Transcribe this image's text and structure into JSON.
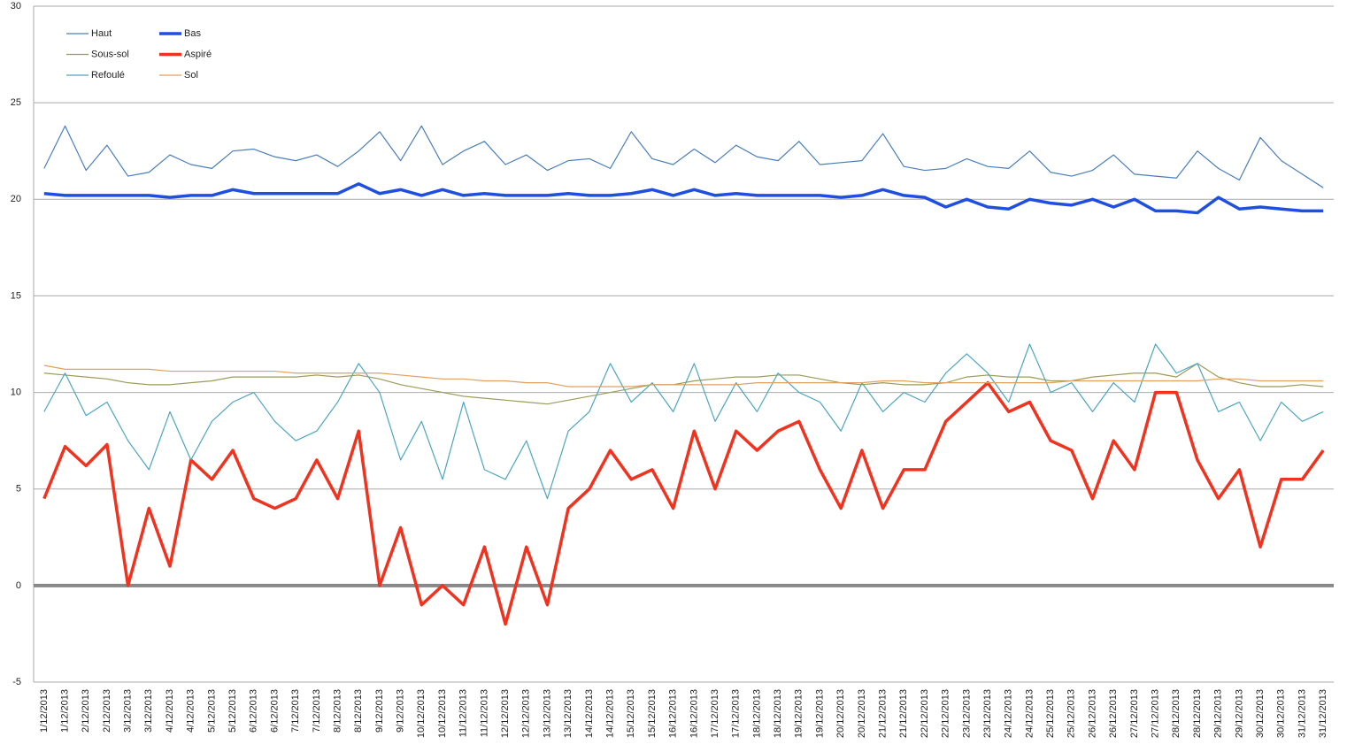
{
  "chart_data": {
    "type": "line",
    "categories": [
      "1/12/2013",
      "1/12/2013",
      "2/12/2013",
      "2/12/2013",
      "3/12/2013",
      "3/12/2013",
      "4/12/2013",
      "4/12/2013",
      "5/12/2013",
      "5/12/2013",
      "6/12/2013",
      "6/12/2013",
      "7/12/2013",
      "7/12/2013",
      "8/12/2013",
      "8/12/2013",
      "9/12/2013",
      "9/12/2013",
      "10/12/2013",
      "10/12/2013",
      "11/12/2013",
      "11/12/2013",
      "12/12/2013",
      "12/12/2013",
      "13/12/2013",
      "13/12/2013",
      "14/12/2013",
      "14/12/2013",
      "15/12/2013",
      "15/12/2013",
      "16/12/2013",
      "16/12/2013",
      "17/12/2013",
      "17/12/2013",
      "18/12/2013",
      "18/12/2013",
      "19/12/2013",
      "19/12/2013",
      "20/12/2013",
      "20/12/2013",
      "21/12/2013",
      "21/12/2013",
      "22/12/2013",
      "22/12/2013",
      "23/12/2013",
      "23/12/2013",
      "24/12/2013",
      "24/12/2013",
      "25/12/2013",
      "25/12/2013",
      "26/12/2013",
      "26/12/2013",
      "27/12/2013",
      "27/12/2013",
      "28/12/2013",
      "28/12/2013",
      "29/12/2013",
      "29/12/2013",
      "30/12/2013",
      "30/12/2013",
      "31/12/2013",
      "31/12/2013"
    ],
    "series": [
      {
        "name": "Haut",
        "color": "#4a7ebb",
        "linewidth": 1.2,
        "values": [
          21.6,
          23.8,
          21.5,
          22.8,
          21.2,
          21.4,
          22.3,
          21.8,
          21.6,
          22.5,
          22.6,
          22.2,
          22.0,
          22.3,
          21.7,
          22.5,
          23.5,
          22.0,
          23.8,
          21.8,
          22.5,
          23.0,
          21.8,
          22.3,
          21.5,
          22.0,
          22.1,
          21.6,
          23.5,
          22.1,
          21.8,
          22.6,
          21.9,
          22.8,
          22.2,
          22.0,
          23.0,
          21.8,
          21.9,
          22.0,
          23.4,
          21.7,
          21.5,
          21.6,
          22.1,
          21.7,
          21.6,
          22.5,
          21.4,
          21.2,
          21.5,
          22.3,
          21.3,
          21.2,
          21.1,
          22.5,
          21.6,
          21.0,
          23.2,
          22.0,
          21.3,
          20.6
        ]
      },
      {
        "name": "Bas",
        "color": "#1f4fe0",
        "linewidth": 3.5,
        "values": [
          20.3,
          20.2,
          20.2,
          20.2,
          20.2,
          20.2,
          20.1,
          20.2,
          20.2,
          20.5,
          20.3,
          20.3,
          20.3,
          20.3,
          20.3,
          20.8,
          20.3,
          20.5,
          20.2,
          20.5,
          20.2,
          20.3,
          20.2,
          20.2,
          20.2,
          20.3,
          20.2,
          20.2,
          20.3,
          20.5,
          20.2,
          20.5,
          20.2,
          20.3,
          20.2,
          20.2,
          20.2,
          20.2,
          20.1,
          20.2,
          20.5,
          20.2,
          20.1,
          19.6,
          20.0,
          19.6,
          19.5,
          20.0,
          19.8,
          19.7,
          20.0,
          19.6,
          20.0,
          19.4,
          19.4,
          19.3,
          20.1,
          19.5,
          19.6,
          19.5,
          19.4,
          19.4
        ]
      },
      {
        "name": "Sous-sol",
        "color": "#9b9b5a",
        "linewidth": 1.2,
        "values": [
          11.0,
          10.9,
          10.8,
          10.7,
          10.5,
          10.4,
          10.4,
          10.5,
          10.6,
          10.8,
          10.8,
          10.8,
          10.8,
          10.9,
          10.8,
          10.9,
          10.7,
          10.4,
          10.2,
          10.0,
          9.8,
          9.7,
          9.6,
          9.5,
          9.4,
          9.6,
          9.8,
          10.0,
          10.2,
          10.4,
          10.4,
          10.6,
          10.7,
          10.8,
          10.8,
          10.9,
          10.9,
          10.7,
          10.5,
          10.4,
          10.5,
          10.4,
          10.4,
          10.5,
          10.8,
          10.9,
          10.8,
          10.8,
          10.6,
          10.6,
          10.8,
          10.9,
          11.0,
          11.0,
          10.8,
          11.5,
          10.8,
          10.5,
          10.3,
          10.3,
          10.4,
          10.3
        ]
      },
      {
        "name": "Aspiré",
        "color": "#f0321e",
        "linewidth": 3.5,
        "values": [
          4.5,
          7.2,
          6.2,
          7.3,
          0,
          4,
          1,
          6.5,
          5.5,
          7,
          4.5,
          4,
          4.5,
          6.5,
          4.5,
          8,
          0,
          3,
          -1,
          0,
          -1,
          2,
          -2,
          2,
          -1,
          4,
          5,
          7,
          5.5,
          6,
          4,
          8,
          5,
          8,
          7,
          8,
          8.5,
          6,
          4,
          7,
          4,
          6,
          6,
          8.5,
          9.5,
          10.5,
          9,
          9.5,
          7.5,
          7,
          4.5,
          7.5,
          6,
          10,
          10,
          6.5,
          4.5,
          6,
          2,
          5.5,
          5.5,
          7
        ]
      },
      {
        "name": "Refoulé",
        "color": "#4ba6c0",
        "linewidth": 1.2,
        "values": [
          9.0,
          11.0,
          8.8,
          9.5,
          7.5,
          6.0,
          9.0,
          6.5,
          8.5,
          9.5,
          10.0,
          8.5,
          7.5,
          8.0,
          9.5,
          11.5,
          10.0,
          6.5,
          8.5,
          5.5,
          9.5,
          6.0,
          5.5,
          7.5,
          4.5,
          8.0,
          9.0,
          11.5,
          9.5,
          10.5,
          9.0,
          11.5,
          8.5,
          10.5,
          9.0,
          11.0,
          10.0,
          9.5,
          8.0,
          10.5,
          9.0,
          10.0,
          9.5,
          11.0,
          12.0,
          11.0,
          9.5,
          12.5,
          10.0,
          10.5,
          9.0,
          10.5,
          9.5,
          12.5,
          11.0,
          11.5,
          9.0,
          9.5,
          7.5,
          9.5,
          8.5,
          9.0
        ]
      },
      {
        "name": "Sol",
        "color": "#e0a060",
        "linewidth": 1.2,
        "values": [
          11.4,
          11.2,
          11.2,
          11.2,
          11.2,
          11.2,
          11.1,
          11.1,
          11.1,
          11.1,
          11.1,
          11.1,
          11.0,
          11.0,
          11.0,
          11.0,
          11.0,
          10.9,
          10.8,
          10.7,
          10.7,
          10.6,
          10.6,
          10.5,
          10.5,
          10.3,
          10.3,
          10.3,
          10.3,
          10.4,
          10.4,
          10.4,
          10.4,
          10.4,
          10.5,
          10.5,
          10.5,
          10.5,
          10.5,
          10.5,
          10.6,
          10.6,
          10.5,
          10.5,
          10.5,
          10.5,
          10.5,
          10.5,
          10.5,
          10.6,
          10.6,
          10.6,
          10.6,
          10.6,
          10.6,
          10.6,
          10.7,
          10.7,
          10.6,
          10.6,
          10.6,
          10.6
        ]
      }
    ],
    "ylim": [
      -5,
      30
    ],
    "yticks": [
      -5,
      0,
      5,
      10,
      15,
      20,
      25,
      30
    ],
    "grid": true,
    "legend": "upper left"
  }
}
